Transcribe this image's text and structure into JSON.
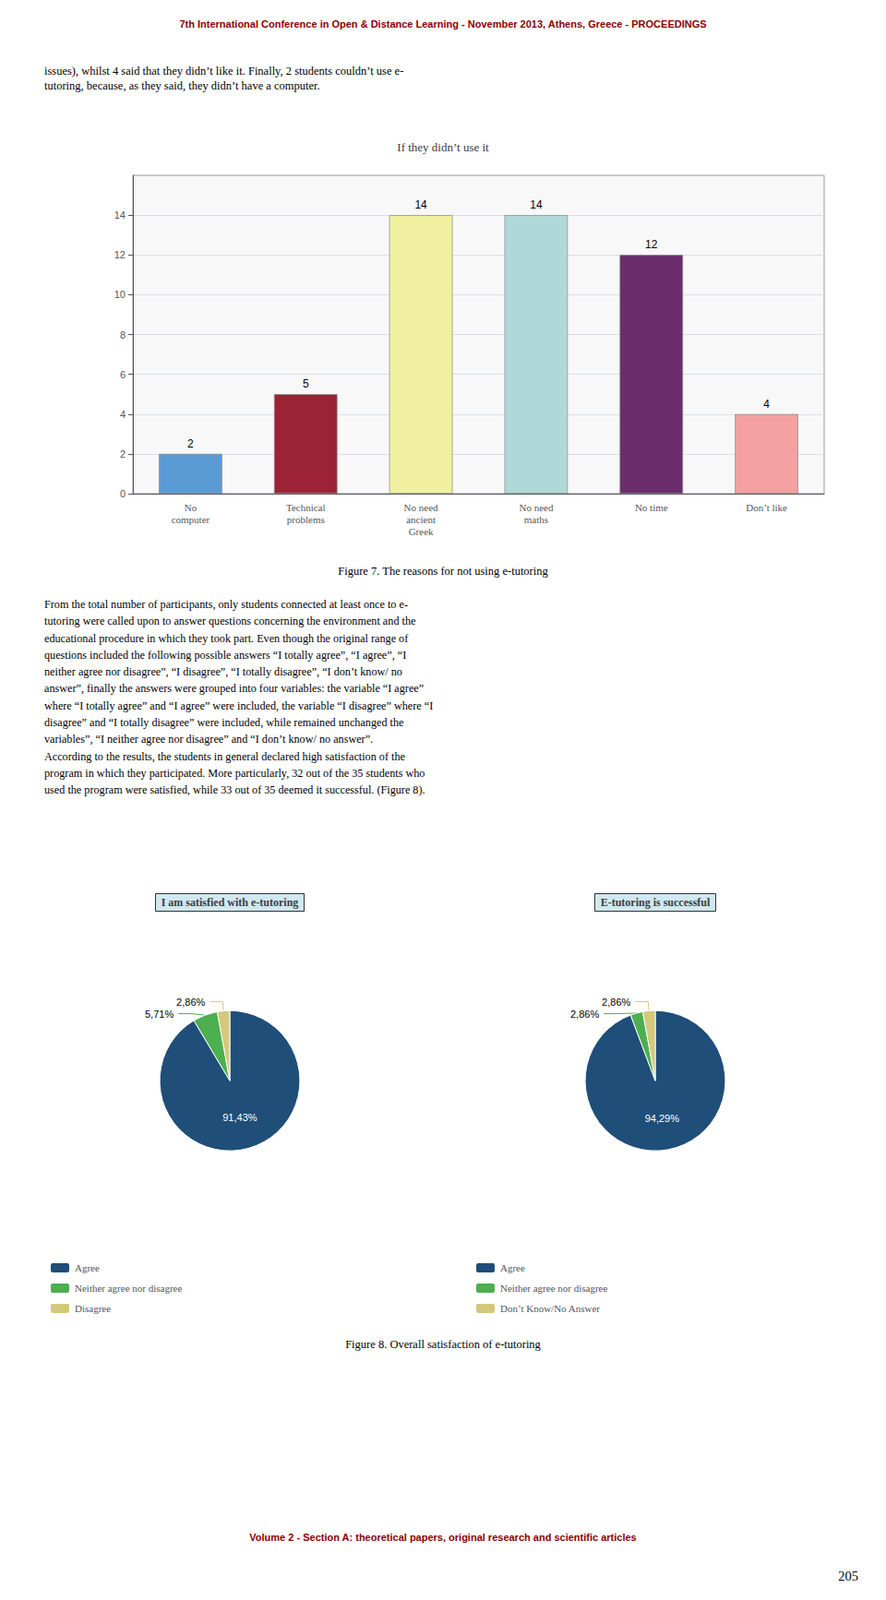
{
  "page_texts": {
    "header": "7th International Conference in Open & Distance Learning - November 2013, Athens, Greece - PROCEEDINGS",
    "intro": "issues), whilst 4 said that they didn’t like it. Finally, 2 students couldn’t use e-\ntutoring, because, as they said, they didn’t have a computer.",
    "fig7_caption": "Figure 7. The reasons for not using e-tutoring",
    "body": "From the total number of participants, only students connected at least once to e-\ntutoring were called upon to answer questions concerning the environment and the\neducational procedure in which they took part. Even though the original range of\nquestions included the following possible answers “I totally agree”, “I agree”, “I\nneither agree nor disagree”, “I disagree”, “I totally disagree”, “I don’t know/ no\nanswer”, finally the answers were grouped into four variables: the variable “I agree”\nwhere “I totally agree” and “I agree” were included, the variable “I disagree” where “I\ndisagree” and “I totally disagree” were included, while remained unchanged the\nvariables”, “I neither agree nor disagree” and “I don’t know/ no answer”.\nAccording to the results, the students in general declared high satisfaction of the\nprogram in which they participated. More particularly, 32 out of the 35 students who\nused the program were satisfied, while 33 out of 35 deemed it successful. (Figure 8).",
    "fig8_caption": "Figure 8. Overall satisfaction of e-tutoring",
    "footer": "Volume 2 - Section A: theoretical papers, original research and scientific articles",
    "page_number": "205"
  },
  "chart_data": [
    {
      "type": "bar",
      "title": "If they didn’t use it",
      "categories": [
        "No\ncomputer",
        "Technical\nproblems",
        "No need\nancient\nGreek",
        "No need\nmaths",
        "No time",
        "Don’t like"
      ],
      "values": [
        2,
        5,
        14,
        14,
        12,
        4
      ],
      "colors": [
        "#5b9bd5",
        "#9b2335",
        "#f0f0a0",
        "#b0d8d8",
        "#6b2d6b",
        "#f4a0a0"
      ],
      "ylim": [
        0,
        16
      ],
      "yticks": [
        0,
        2,
        4,
        6,
        8,
        10,
        12,
        14
      ],
      "grid": true,
      "data_labels": true
    },
    {
      "type": "pie",
      "title": "I am satisfied with e-tutoring",
      "categories": [
        "Agree",
        "Neither agree nor disagree",
        "Disagree"
      ],
      "values": [
        91.43,
        5.71,
        2.86
      ],
      "value_labels": [
        "91,43%",
        "5,71%",
        "2,86%"
      ],
      "colors": [
        "#1f4e79",
        "#4caf50",
        "#d4c87a"
      ],
      "data_labels": true,
      "legend": "bottom"
    },
    {
      "type": "pie",
      "title": "E-tutoring is successful",
      "categories": [
        "Agree",
        "Neither agree nor disagree",
        "Don’t Know/No Answer"
      ],
      "values": [
        94.29,
        2.86,
        2.86
      ],
      "value_labels": [
        "94,29%",
        "2,86%",
        "2,86%"
      ],
      "colors": [
        "#1f4e79",
        "#4caf50",
        "#d4c87a"
      ],
      "data_labels": true,
      "legend": "bottom"
    }
  ]
}
